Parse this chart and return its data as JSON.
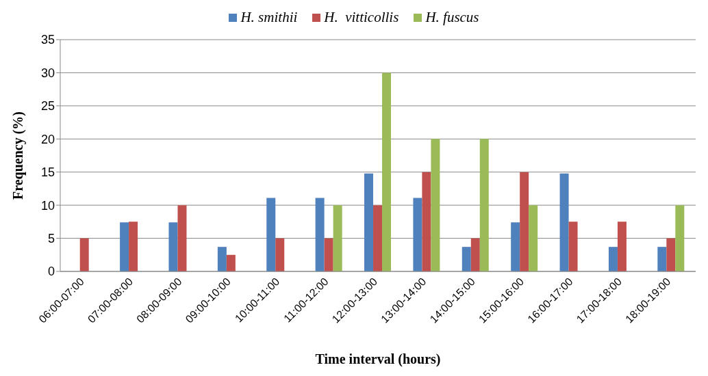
{
  "chart_data": {
    "type": "bar",
    "xlabel": "Time interval (hours)",
    "ylabel": "Frequency (%)",
    "categories": [
      "06:00-07:00",
      "07:00-08:00",
      "08:00-09:00",
      "09:00-10:00",
      "10:00-11:00",
      "11:00-12:00",
      "12:00-13:00",
      "13:00-14:00",
      "14:00-15:00",
      "15:00-16:00",
      "16:00-17:00",
      "17:00-18:00",
      "18:00-19:00"
    ],
    "series": [
      {
        "name": "H. smithii",
        "color": "#4f81bd",
        "values": [
          0,
          7.4,
          7.4,
          3.7,
          11.1,
          11.1,
          14.8,
          11.1,
          3.7,
          7.4,
          14.8,
          3.7,
          3.7
        ]
      },
      {
        "name": "H.  vitticollis",
        "color": "#c0504d",
        "values": [
          5,
          7.5,
          10,
          2.5,
          5,
          5,
          10,
          15,
          5,
          15,
          7.5,
          7.5,
          5
        ]
      },
      {
        "name": "H. fuscus",
        "color": "#9bbb59",
        "values": [
          0,
          0,
          0,
          0,
          0,
          10,
          30,
          20,
          20,
          10,
          0,
          0,
          10
        ]
      }
    ],
    "ylim": [
      0,
      35
    ],
    "yticks": [
      0,
      5,
      10,
      15,
      20,
      25,
      30,
      35
    ],
    "grid": "y",
    "legend": "top"
  }
}
